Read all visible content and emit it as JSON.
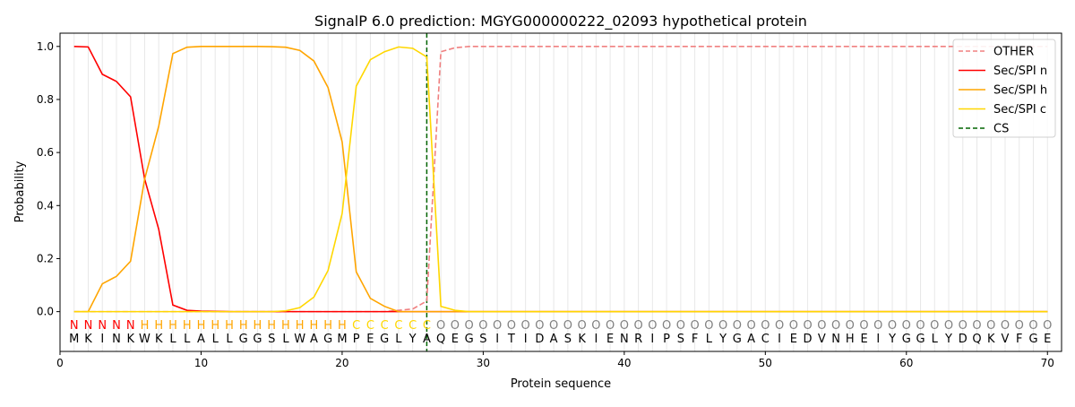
{
  "chart_data": {
    "type": "line",
    "title": "SignalP 6.0 prediction: MGYG000000222_02093 hypothetical protein",
    "xlabel": "Protein sequence",
    "ylabel": "Probability",
    "xlim": [
      0,
      71
    ],
    "ylim": [
      -0.15,
      1.05
    ],
    "xticks": [
      0,
      10,
      20,
      30,
      40,
      50,
      60,
      70
    ],
    "yticks": [
      "0.0",
      "0.2",
      "0.4",
      "0.6",
      "0.8",
      "1.0"
    ],
    "grid": "vertical per residue",
    "legend_placement": "top-right",
    "sequence": "MKINKWKLLALLGGSLWAGMPEGLYAQEGSITIDASKIENRIPSFLYGACIEDVNHEIYGGLYDQKVFGE",
    "labels": "NNNNNHHHHHHHHHHHHHHHCCCCCCOOOOOOOOOOOOOOOOOOOOOOOOOOOOOOOOOOOOOOOOOOOO",
    "label_colors": {
      "N": "#ff0000",
      "H": "#ffa500",
      "C": "#ffd700",
      "O": "#808080"
    },
    "cs_position": 26,
    "series": [
      {
        "name": "OTHER",
        "color": "#f08080",
        "dash": true,
        "values": {
          "start": [
            0,
            0,
            0,
            0,
            0,
            0,
            0,
            0,
            0,
            0,
            0,
            0,
            0,
            0,
            0,
            0,
            0,
            0,
            0,
            0,
            0,
            0,
            0,
            0.005,
            0.01,
            0.04,
            0.98,
            0.995
          ],
          "rest": 1.0
        }
      },
      {
        "name": "Sec/SPI n",
        "color": "#ff0000",
        "values": {
          "start": [
            1.0,
            0.998,
            0.895,
            0.868,
            0.81,
            0.5,
            0.31,
            0.025,
            0.005,
            0.002,
            0.001
          ],
          "rest": 0
        }
      },
      {
        "name": "Sec/SPI h",
        "color": "#ffa500",
        "values": {
          "start": [
            0,
            0,
            0.105,
            0.133,
            0.19,
            0.5,
            0.7,
            0.973,
            0.997,
            1.0,
            1.0,
            1.0,
            1.0,
            1.0,
            0.999,
            0.997,
            0.985,
            0.945,
            0.845,
            0.64,
            0.15,
            0.05,
            0.02,
            0.0,
            0.0,
            0.0,
            0.0
          ],
          "rest": 0
        }
      },
      {
        "name": "Sec/SPI c",
        "color": "#ffd700",
        "values": {
          "start": [
            0,
            0,
            0,
            0,
            0,
            0,
            0,
            0,
            0,
            0,
            0,
            0,
            0,
            0,
            0,
            0.003,
            0.015,
            0.055,
            0.155,
            0.37,
            0.85,
            0.95,
            0.98,
            0.998,
            0.993,
            0.96,
            0.02,
            0.005
          ],
          "rest": 0
        }
      }
    ],
    "legend": [
      "OTHER",
      "Sec/SPI n",
      "Sec/SPI h",
      "Sec/SPI c",
      "CS"
    ],
    "cs_color": "#006400"
  }
}
